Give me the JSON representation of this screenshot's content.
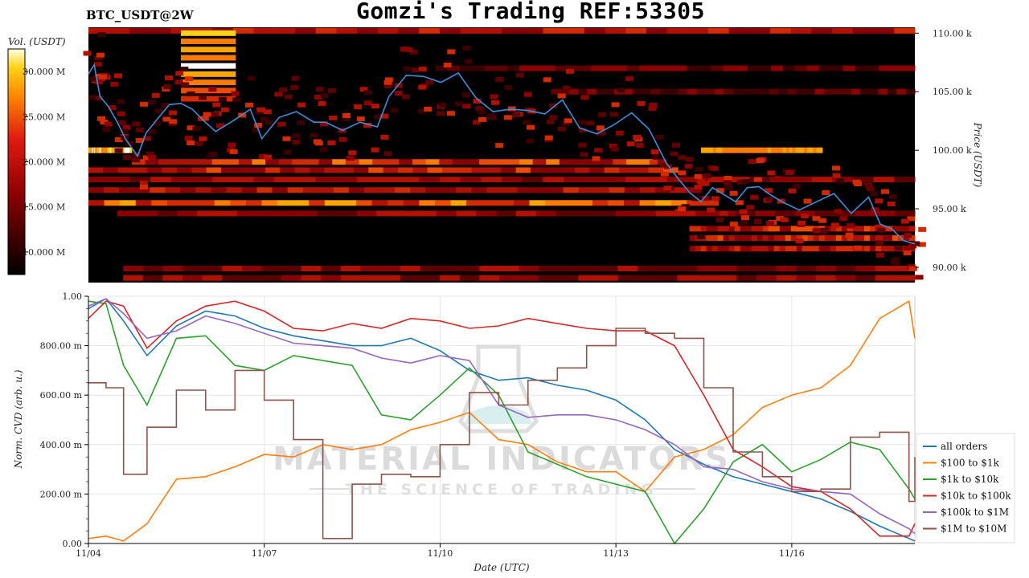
{
  "header": {
    "pair": "BTC_USDT@2W",
    "title": "Gomzi's Trading REF:53305"
  },
  "watermark": {
    "line1": "MATERIAL INDICATORS",
    "line2": "THE SCIENCE OF TRADING"
  },
  "colors": {
    "heatmap_bg": "#000000",
    "price_line": "#3b8ed8",
    "all_orders": "#1f77b4",
    "100_1k": "#ff7f0e",
    "1k_10k": "#2ca02c",
    "10k_100k": "#d62728",
    "100k_1M": "#9467bd",
    "1M_10M": "#8c564b"
  },
  "chart_data": [
    {
      "type": "heatmap",
      "title": "BTC_USDT@2W",
      "colorbar": {
        "label": "Vol. (USDT)",
        "ticks": [
          "30.000 M",
          "25.000 M",
          "20.000 M",
          "15.000 M",
          "10.000 M"
        ],
        "range": [
          7500000,
          32500000
        ]
      },
      "ylabel": "Price (USDT)",
      "yticks": [
        "110.00 k",
        "105.00 k",
        "100.00 k",
        "95.00 k",
        "90.00 k"
      ],
      "ylim": [
        88700,
        110500
      ],
      "xlim": [
        0,
        14.3
      ],
      "price_series": {
        "name": "Price",
        "x": [
          0,
          0.1,
          0.2,
          0.35,
          0.5,
          0.65,
          0.85,
          1.0,
          1.2,
          1.4,
          1.6,
          1.8,
          2.0,
          2.2,
          2.5,
          2.8,
          3.0,
          3.3,
          3.6,
          3.9,
          4.1,
          4.4,
          4.7,
          5.0,
          5.2,
          5.5,
          5.8,
          6.1,
          6.4,
          6.7,
          7.0,
          7.3,
          7.6,
          7.9,
          8.2,
          8.5,
          8.8,
          9.1,
          9.4,
          9.7,
          10.0,
          10.2,
          10.4,
          10.6,
          10.8,
          11.0,
          11.2,
          11.4,
          11.6,
          11.8,
          12.0,
          12.3,
          12.6,
          12.9,
          13.2,
          13.5,
          13.7,
          13.9,
          14.1,
          14.3
        ],
        "y": [
          106500,
          107300,
          104600,
          103700,
          102400,
          100900,
          99500,
          101500,
          102700,
          103900,
          104000,
          103500,
          102500,
          101600,
          102500,
          103500,
          101000,
          102800,
          103300,
          102400,
          102400,
          101700,
          102400,
          102000,
          104600,
          106400,
          106300,
          105800,
          106600,
          104500,
          103300,
          103500,
          103400,
          103100,
          104300,
          101900,
          101400,
          102200,
          103200,
          101800,
          98900,
          97600,
          96400,
          95600,
          96800,
          96200,
          95600,
          96800,
          96900,
          96200,
          95600,
          94900,
          95600,
          96300,
          94600,
          96000,
          93700,
          93300,
          92300,
          92000
        ]
      }
    },
    {
      "type": "line",
      "xlabel": "Date (UTC)",
      "ylabel": "Norm. CVD (arb. u.)",
      "xticks": [
        "11/04",
        "11/07",
        "11/10",
        "11/13",
        "11/16"
      ],
      "yticks": [
        "1.00",
        "800.00 m",
        "600.00 m",
        "400.00 m",
        "200.00 m",
        "0.00"
      ],
      "xlim": [
        0,
        14.1
      ],
      "ylim": [
        0,
        1
      ],
      "x": [
        0,
        0.3,
        0.6,
        1.0,
        1.5,
        2.0,
        2.5,
        3.0,
        3.5,
        4.0,
        4.5,
        5.0,
        5.5,
        6.0,
        6.5,
        7.0,
        7.5,
        8.0,
        8.5,
        9.0,
        9.5,
        10.0,
        10.5,
        11.0,
        11.5,
        12.0,
        12.5,
        13.0,
        13.5,
        14.0,
        14.1
      ],
      "series": [
        {
          "name": "all orders",
          "values": [
            0.95,
            0.99,
            0.9,
            0.76,
            0.88,
            0.94,
            0.92,
            0.87,
            0.84,
            0.82,
            0.8,
            0.8,
            0.83,
            0.78,
            0.7,
            0.66,
            0.67,
            0.64,
            0.62,
            0.58,
            0.5,
            0.38,
            0.32,
            0.27,
            0.24,
            0.21,
            0.18,
            0.13,
            0.07,
            0.02,
            0.01
          ]
        },
        {
          "name": "$100 to $1k",
          "values": [
            0.02,
            0.03,
            0.01,
            0.08,
            0.26,
            0.27,
            0.31,
            0.36,
            0.35,
            0.4,
            0.38,
            0.4,
            0.46,
            0.49,
            0.53,
            0.42,
            0.4,
            0.33,
            0.29,
            0.29,
            0.21,
            0.35,
            0.38,
            0.44,
            0.55,
            0.6,
            0.63,
            0.72,
            0.91,
            0.98,
            0.83
          ]
        },
        {
          "name": "$1k to $10k",
          "values": [
            0.98,
            0.97,
            0.72,
            0.56,
            0.83,
            0.84,
            0.72,
            0.7,
            0.76,
            0.74,
            0.72,
            0.52,
            0.5,
            0.6,
            0.71,
            0.6,
            0.37,
            0.32,
            0.27,
            0.24,
            0.21,
            0.0,
            0.14,
            0.33,
            0.4,
            0.29,
            0.34,
            0.41,
            0.38,
            0.22,
            0.18
          ]
        },
        {
          "name": "$10k to $100k",
          "values": [
            0.91,
            0.98,
            0.96,
            0.79,
            0.9,
            0.96,
            0.98,
            0.94,
            0.87,
            0.86,
            0.89,
            0.87,
            0.91,
            0.9,
            0.87,
            0.88,
            0.91,
            0.89,
            0.87,
            0.86,
            0.86,
            0.8,
            0.6,
            0.38,
            0.31,
            0.23,
            0.21,
            0.14,
            0.03,
            0.03,
            0.08
          ]
        },
        {
          "name": "$100k to $1M",
          "values": [
            0.96,
            0.99,
            0.93,
            0.83,
            0.86,
            0.92,
            0.89,
            0.85,
            0.81,
            0.8,
            0.79,
            0.75,
            0.73,
            0.76,
            0.74,
            0.56,
            0.51,
            0.52,
            0.52,
            0.5,
            0.46,
            0.4,
            0.31,
            0.3,
            0.25,
            0.22,
            0.21,
            0.2,
            0.12,
            0.06,
            0.04
          ]
        },
        {
          "name": "$1M to $10M",
          "values": [
            0.65,
            0.63,
            0.28,
            0.47,
            0.62,
            0.54,
            0.7,
            0.58,
            0.42,
            0.02,
            0.24,
            0.28,
            0.27,
            0.4,
            0.61,
            0.56,
            0.66,
            0.71,
            0.8,
            0.87,
            0.85,
            0.83,
            0.63,
            0.37,
            0.27,
            0.21,
            0.22,
            0.43,
            0.45,
            0.17,
            0.35
          ]
        }
      ]
    }
  ]
}
